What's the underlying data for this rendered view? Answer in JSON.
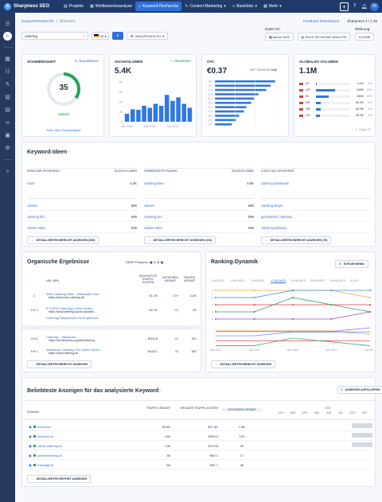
{
  "app": {
    "name": "Sharpness SEO"
  },
  "nav": {
    "items": [
      {
        "label": "Projekte",
        "icon": "folder-icon"
      },
      {
        "label": "Wettbewerbsanalyse",
        "icon": "chart-icon"
      },
      {
        "label": "Keyword-Recherche",
        "icon": "search-icon"
      },
      {
        "label": "Content Marketing",
        "icon": "pen-icon"
      },
      {
        "label": "Backlinks",
        "icon": "link-icon"
      },
      {
        "label": "Mehr",
        "icon": "grid-icon"
      }
    ],
    "caret": "▾"
  },
  "topright": {
    "plus": "+",
    "avatar": "Sh"
  },
  "breadcrumb": {
    "first": "Keyword-Recherche",
    "sep": "/",
    "second": "Übersicht"
  },
  "feedback": {
    "label": "Feedback hinterlassen",
    "account": "Sharpness 4 / 1 36"
  },
  "search": {
    "value": "catering",
    "clear": "×",
    "flag_label": "DE",
    "add_label": "HINZUFÜGEN ZU"
  },
  "date": {
    "label": "Daten für:",
    "value": "Januar 2023",
    "bulk_label": "BULK KEYWORD-ANALYSE"
  },
  "currency": {
    "label": "Währung:",
    "value": "€ EUR"
  },
  "difficulty": {
    "title": "SCHWIERIGKEIT",
    "update": "Aktualisieren",
    "value": "35",
    "level": "LEICHT",
    "more": "Mehr über Schwierigkeit",
    "fraction": 0.35
  },
  "volume": {
    "title": "SUCHVOLUMEN",
    "update": "Aktualisiert",
    "value": "5.4K"
  },
  "volume_chart": {
    "type": "bar",
    "categories": [
      "Jan 2022",
      "Feb 2022",
      "Mär 2022",
      "Apr 2022",
      "Mai 2022",
      "Jun 2022",
      "Jul 2022",
      "Aug 2022",
      "Sep 2022",
      "Okt 2022",
      "Nov 2022",
      "Dez 2022"
    ],
    "values": [
      1.6,
      2.5,
      2.4,
      3.2,
      2.8,
      3.6,
      3.2,
      5.4,
      4.2,
      4.9,
      3.6,
      2.8
    ],
    "x_ticks": [
      "Jan 2022",
      "Mai 2022",
      "Sep 2022"
    ],
    "y_ticks": [
      "8K",
      "6K",
      "4K",
      "2K",
      "0"
    ],
    "ylim": [
      0,
      8
    ]
  },
  "cpc": {
    "title": "CPC",
    "competitor": "WETTBEWERB",
    "competitor_value": "0.32",
    "value": "€0.37"
  },
  "cpc_chart": {
    "type": "bar",
    "categories": [
      "a",
      "b",
      "c",
      "d",
      "e",
      "f",
      "g",
      "h",
      "i",
      "j",
      "k"
    ],
    "values": [
      100,
      92,
      85,
      72,
      65,
      60,
      52,
      48,
      40,
      35,
      28
    ]
  },
  "global": {
    "title": "GLOBALES VOLUMEN",
    "value": "1.1M",
    "rows": [
      {
        "country": "AT",
        "value": "5.4K",
        "pct": "1%",
        "frac": 0.02
      },
      {
        "country": "US",
        "value": "246K",
        "pct": "23%",
        "frac": 0.55
      },
      {
        "country": "IN",
        "value": "165K",
        "pct": "15%",
        "frac": 0.37
      },
      {
        "country": "DE",
        "value": "60.5K",
        "pct": "6%",
        "frac": 0.14
      },
      {
        "country": "GB",
        "value": "60.5K",
        "pct": "6%",
        "frac": 0.14
      },
      {
        "country": "CA",
        "value": "49.5K",
        "pct": "5%",
        "frac": 0.11
      }
    ],
    "pager": "1 - 6 von 11"
  },
  "ideas": {
    "title": "Keyword-Ideen",
    "cols": [
      {
        "h1": "ÄHNLICHE KEYWORDS",
        "h2": "SUCHVOLUMEN",
        "top": [
          {
            "k": "cater",
            "v": "4.4K"
          }
        ],
        "rows": [
          {
            "k": "caterer",
            "v": "660"
          },
          {
            "k": "catering linz",
            "v": "590"
          },
          {
            "k": "caterer wien",
            "v": "590"
          }
        ],
        "btn": "DETAILLIERTEN BERICHT ANZEIGEN (685)"
      },
      {
        "h1": "VERBREITETE FRAGEN",
        "h2": "SUCHVOLUMEN",
        "top": [
          {
            "k": "catering wien",
            "v": "5.6K"
          }
        ],
        "rows": [
          {
            "k": "caterer",
            "v": "660"
          },
          {
            "k": "catering linz",
            "v": "590"
          },
          {
            "k": "caterer wien",
            "v": "590"
          }
        ],
        "btn": "DETAILLIERTEN BERICHT ANZEIGEN (103)"
      },
      {
        "h1": "LONG-TAIL KEYWORDS",
        "h2": "",
        "top": [
          {
            "k": "catering steinmann",
            "v": ""
          }
        ],
        "rows": [
          {
            "k": "catering steyer",
            "v": ""
          },
          {
            "k": "genussreich catering",
            "v": ""
          },
          {
            "k": "catering salzburg",
            "v": ""
          }
        ],
        "btn": "DETAILLIERTEN BERICHT ANZEIGEN (76)"
      }
    ]
  },
  "organic": {
    "title": "Organische Ergebnisse",
    "serp": "SERP Features:",
    "headers": [
      "URL (NR)",
      "GESCHÄTZTE TRAFFIC-KOSTEN",
      "KEYWORDS GESAMT",
      "TRAFFIC GESAMT"
    ],
    "rows": [
      {
        "pos": "1",
        "title": "MAX Catering Wien - Wiktimater Gen...",
        "url": "https://www.max-catering.at/",
        "cost": "€1.7K",
        "kw": "509",
        "traffic": "2.5K"
      },
      {
        "pos": "2 ▾ 1",
        "title": "5 TOP10 Catering in Wien finden",
        "url": "https://www.catering-suche.at/cateri...",
        "cost": "€2.1K",
        "kw": "49",
        "traffic": "2K"
      },
      {
        "pos": "",
        "title": "Catering Partyservice mit Empfehlun...",
        "url": "",
        "cost": "",
        "kw": "",
        "traffic": ""
      },
      {
        "pos": "4 ▾ 2",
        "title": "Catering – Wikipedia",
        "url": "https://de.wikipedia.org/wiki/Catering",
        "cost": "€200.6",
        "kw": "20",
        "traffic": "511"
      },
      {
        "pos": "5 ▾ 1",
        "title": "Adventure Catering | Für echte Feinsc...",
        "url": "https://www.catering.at/",
        "cost": "€228.1",
        "kw": "36",
        "traffic": "387"
      }
    ],
    "btn": "DETAILLIERTEN BERICHT ANZEIGEN"
  },
  "ranking": {
    "title": "Ranking-Dynamik",
    "export": "EXPORTIEREN",
    "tabs": [
      "1 MONATE",
      "3 MONATE",
      "6 MONATE",
      "12 MONATE",
      "24 MONATE",
      "36 MONATE",
      "48 MONATE",
      "ALLES"
    ],
    "active_tab": 3,
    "y_ticks": [
      "1",
      "2",
      "3",
      "4",
      "5"
    ],
    "x_ticks": [
      "Sep 2022",
      "Okt 2022",
      "Nov 2022",
      "Dez 2022",
      "Jan 2023"
    ],
    "btn": "DETAILLIERTEN BERICHT ANZEIGEN"
  },
  "ranking_chart": {
    "type": "line",
    "x": [
      "Sep 2022",
      "Okt 2022",
      "Nov 2022",
      "Dez 2022",
      "Jan 2023"
    ],
    "series": [
      {
        "color": "#f2a93b",
        "values": [
          1,
          1,
          1,
          1,
          2
        ]
      },
      {
        "color": "#3a8dde",
        "values": [
          2,
          2,
          1,
          1,
          1
        ]
      },
      {
        "color": "#e23b3b",
        "values": [
          3,
          3,
          3,
          3,
          3
        ]
      },
      {
        "color": "#25a35a",
        "values": [
          4,
          4,
          2,
          3,
          4
        ]
      },
      {
        "color": "#a64ac9",
        "values": [
          5,
          5,
          5,
          5,
          4
        ]
      }
    ],
    "ylim": [
      1,
      5
    ],
    "y_reversed": true
  },
  "ads": {
    "title": "Beliebteste Anzeigen für das analysierte Keyword",
    "expand": "ANZEIGEN AUFKLAPPEN",
    "headers": [
      "DOMAIN",
      "TRAFFIC GESAMT",
      "GESAMTE TRAFFIC-KOSTEN",
      "KEYWORDS GESAMT"
    ],
    "months": [
      "NOV",
      "MÄR",
      "APR",
      "MAI",
      "JUN",
      "JUL",
      "AUG",
      "SEP"
    ],
    "year": "2022",
    "rows": [
      {
        "domain": "mann.eat",
        "traffic": "36.6K",
        "cost": "€27.4K",
        "kw": "1.9K"
      },
      {
        "domain": "bestfood.at",
        "traffic": "240",
        "cost": "€250.4",
        "kw": "133"
      },
      {
        "domain": "velvet-catering.at",
        "traffic": "135",
        "cost": "€179.8",
        "kw": "20"
      },
      {
        "domain": "jomatecatering.at",
        "traffic": "55",
        "cost": "€62.1",
        "kw": "17"
      },
      {
        "domain": "rhdsingly.at",
        "traffic": "65",
        "cost": "€61.7",
        "kw": "45"
      }
    ],
    "btn": "DETAILLIERTEN REPORT ANZEIGEN"
  }
}
